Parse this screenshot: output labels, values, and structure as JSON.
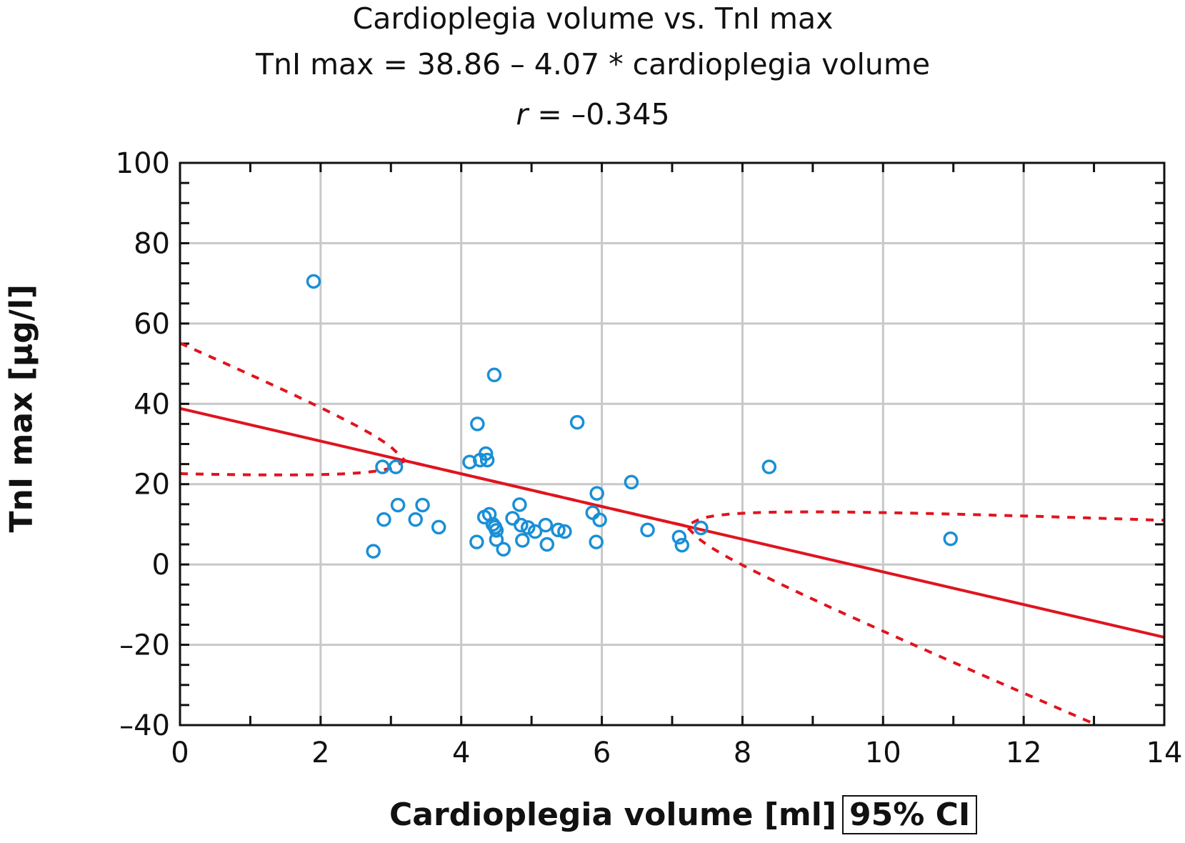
{
  "chart_data": {
    "type": "scatter",
    "title": "Cardioplegia volume vs. TnI max",
    "subtitle": "TnI max = 38.86 – 4.07 * cardioplegia volume",
    "annotation_r_label": "r",
    "annotation_r_value": " = –0.345",
    "xlabel": "Cardioplegia volume [ml]",
    "legend_box": "95% CI",
    "ylabel": "TnI max [µg/l]",
    "xlim": [
      0,
      14
    ],
    "ylim": [
      -40,
      100
    ],
    "xticks": [
      0,
      2,
      4,
      6,
      8,
      10,
      12,
      14
    ],
    "yticks": [
      -40,
      -20,
      0,
      20,
      40,
      60,
      80,
      100
    ],
    "ytick_labels": [
      "–40",
      "–20",
      "0",
      "20",
      "40",
      "60",
      "80",
      "100"
    ],
    "grid": true,
    "regression": {
      "intercept": 38.86,
      "slope": -4.07,
      "r": -0.345
    },
    "ci_band": {
      "upper_at_x0": 55,
      "upper_at_x14": 11,
      "lower_at_x0": 22.5,
      "lower_at_x13": -40.5,
      "center_x": 5.2
    },
    "colors": {
      "points": "#1a8fd6",
      "regression": "#e0141e",
      "grid": "#c8c8c8"
    },
    "points": [
      [
        1.9,
        70.5
      ],
      [
        2.75,
        3.3
      ],
      [
        2.88,
        24.3
      ],
      [
        2.9,
        11.2
      ],
      [
        3.07,
        24.3
      ],
      [
        3.1,
        14.8
      ],
      [
        3.35,
        11.2
      ],
      [
        3.45,
        14.8
      ],
      [
        3.68,
        9.3
      ],
      [
        4.12,
        25.5
      ],
      [
        4.23,
        35
      ],
      [
        4.22,
        5.6
      ],
      [
        4.27,
        26
      ],
      [
        4.33,
        11.8
      ],
      [
        4.35,
        27.6
      ],
      [
        4.37,
        26
      ],
      [
        4.4,
        12.5
      ],
      [
        4.45,
        10
      ],
      [
        4.47,
        47.2
      ],
      [
        4.48,
        9.3
      ],
      [
        4.5,
        8.5
      ],
      [
        4.5,
        6.2
      ],
      [
        4.6,
        3.8
      ],
      [
        4.73,
        11.5
      ],
      [
        4.83,
        14.9
      ],
      [
        4.85,
        9.8
      ],
      [
        4.87,
        6
      ],
      [
        4.95,
        9.2
      ],
      [
        5.05,
        8.2
      ],
      [
        5.2,
        9.8
      ],
      [
        5.22,
        5
      ],
      [
        5.38,
        8.6
      ],
      [
        5.47,
        8.2
      ],
      [
        5.65,
        35.4
      ],
      [
        5.87,
        12.9
      ],
      [
        5.93,
        17.7
      ],
      [
        5.92,
        5.6
      ],
      [
        5.97,
        11.1
      ],
      [
        6.42,
        20.5
      ],
      [
        6.65,
        8.6
      ],
      [
        7.1,
        6.8
      ],
      [
        7.14,
        4.8
      ],
      [
        7.41,
        9.1
      ],
      [
        8.38,
        24.3
      ],
      [
        10.96,
        6.4
      ]
    ]
  }
}
